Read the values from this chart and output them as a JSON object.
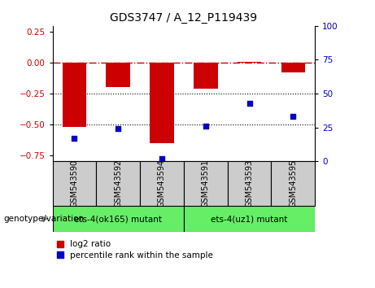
{
  "title": "GDS3747 / A_12_P119439",
  "samples": [
    "GSM543590",
    "GSM543592",
    "GSM543594",
    "GSM543591",
    "GSM543593",
    "GSM543595"
  ],
  "log2_ratio": [
    -0.52,
    -0.2,
    -0.65,
    -0.21,
    0.01,
    -0.08
  ],
  "percentile_rank": [
    17,
    24,
    2,
    26,
    43,
    33
  ],
  "bar_color": "#CC0000",
  "dot_color": "#0000CC",
  "ylim_left": [
    -0.8,
    0.3
  ],
  "ylim_right": [
    0,
    100
  ],
  "yticks_left": [
    0.25,
    0,
    -0.25,
    -0.5,
    -0.75
  ],
  "yticks_right": [
    100,
    75,
    50,
    25,
    0
  ],
  "dotted_lines": [
    -0.25,
    -0.5
  ],
  "bar_width": 0.55,
  "legend_label_bar": "log2 ratio",
  "legend_label_dot": "percentile rank within the sample",
  "genotype_label": "genotype/variation",
  "group1_label": "ets-4(ok165) mutant",
  "group2_label": "ets-4(uz1) mutant",
  "group_color": "#66EE66",
  "sample_box_color": "#cccccc",
  "xlim": [
    -0.5,
    5.5
  ]
}
